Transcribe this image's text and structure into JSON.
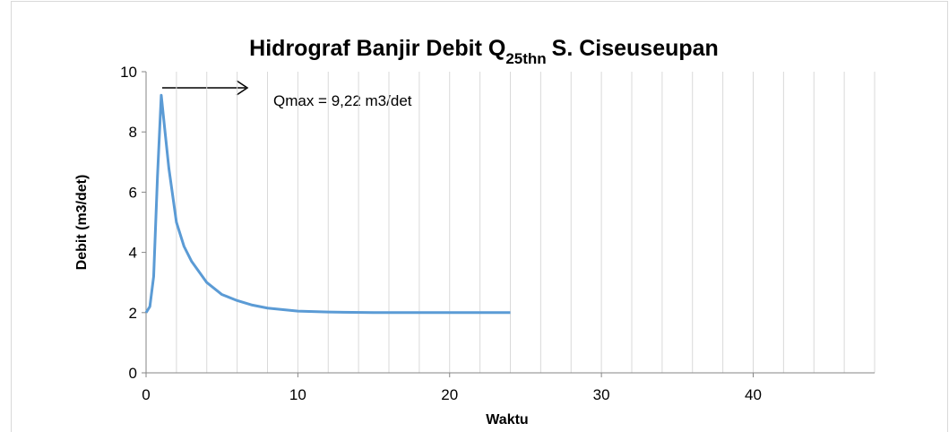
{
  "chart_data": {
    "type": "line",
    "title": {
      "main": "Hidrograf Banjir Debit Q",
      "subscript": "25thn",
      "rest": "S. Ciseuseupan"
    },
    "xlabel": "Waktu",
    "ylabel": "Debit (m3/det)",
    "annotation": "Qmax = 9,22 m3/det",
    "x": [
      0,
      0.25,
      0.5,
      0.75,
      1,
      1.25,
      1.5,
      2,
      2.5,
      3,
      4,
      5,
      6,
      7,
      8,
      10,
      12,
      15,
      20,
      24
    ],
    "series": [
      {
        "name": "Debit",
        "color": "#5b9bd5",
        "values": [
          2.0,
          2.2,
          3.2,
          6.5,
          9.22,
          8.0,
          6.8,
          5.0,
          4.2,
          3.7,
          3.0,
          2.6,
          2.4,
          2.25,
          2.15,
          2.05,
          2.02,
          2.0,
          2.0,
          2.0
        ]
      }
    ],
    "xlim": [
      0,
      48
    ],
    "xticks": [
      0,
      10,
      20,
      30,
      40
    ],
    "x_gridlines": [
      2,
      4,
      6,
      8,
      10,
      12,
      14,
      16,
      18,
      20,
      22,
      24,
      26,
      28,
      30,
      32,
      34,
      36,
      38,
      40,
      42,
      44,
      46,
      48
    ],
    "ylim": [
      0,
      10
    ],
    "yticks": [
      0,
      2,
      4,
      6,
      8,
      10
    ]
  }
}
